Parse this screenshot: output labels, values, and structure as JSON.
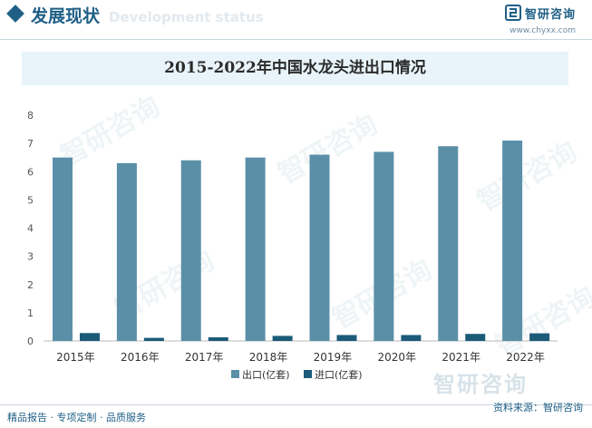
{
  "header": {
    "section_title": "发展现状",
    "section_ghost": "Development status",
    "brand_name": "智研咨询",
    "brand_url": "www.chyxx.com"
  },
  "watermark": {
    "text": "智研咨询"
  },
  "footer": {
    "left": "精品报告 · 专项定制 · 品质服务",
    "right": "资料来源：智研咨询"
  },
  "colors": {
    "export": "#5b8fa8",
    "import": "#1b5b78",
    "accent": "#1f5f86"
  },
  "chart_data": {
    "type": "bar",
    "title": "2015-2022年中国水龙头进出口情况",
    "categories": [
      "2015年",
      "2016年",
      "2017年",
      "2018年",
      "2019年",
      "2020年",
      "2021年",
      "2022年"
    ],
    "series": [
      {
        "name": "出口(亿套)",
        "values": [
          6.5,
          6.3,
          6.4,
          6.5,
          6.6,
          6.7,
          6.9,
          7.1
        ]
      },
      {
        "name": "进口(亿套)",
        "values": [
          0.28,
          0.11,
          0.13,
          0.18,
          0.21,
          0.21,
          0.25,
          0.27
        ]
      }
    ],
    "ylim": [
      0,
      8
    ],
    "yticks": [
      "0",
      "1",
      "2",
      "3",
      "4",
      "5",
      "6",
      "7",
      "8"
    ],
    "grid": false,
    "legend": "bottom"
  }
}
